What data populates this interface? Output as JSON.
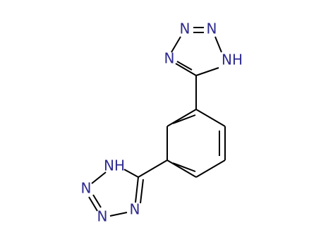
{
  "atoms": [
    {
      "label": "N"
    },
    {
      "label": "N"
    },
    {
      "label": "N"
    },
    {
      "label": "NH"
    },
    {
      "label": "NH"
    },
    {
      "label": "N"
    },
    {
      "label": "N"
    },
    {
      "label": "N"
    }
  ]
}
